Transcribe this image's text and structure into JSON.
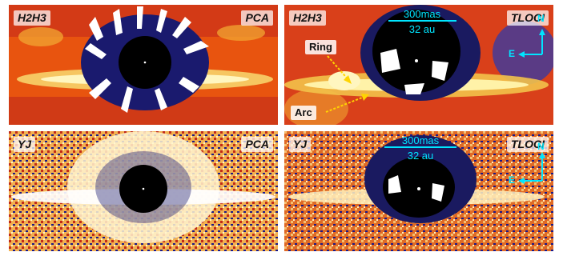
{
  "panels": [
    {
      "band": "H2H3",
      "method": "PCA"
    },
    {
      "band": "H2H3",
      "method": "TLOCI",
      "ring_label": "Ring",
      "arc_label": "Arc",
      "scale_mas": "300mas",
      "scale_au": "32 au",
      "north": "N",
      "east": "E"
    },
    {
      "band": "YJ",
      "method": "PCA"
    },
    {
      "band": "YJ",
      "method": "TLOCI",
      "scale_mas": "300mas",
      "scale_au": "32 au",
      "north": "N",
      "east": "E"
    }
  ],
  "colors": {
    "accent": "#00e5ff",
    "arrow": "#ffd400",
    "mask": "#000000",
    "divider": "#ffffff"
  }
}
